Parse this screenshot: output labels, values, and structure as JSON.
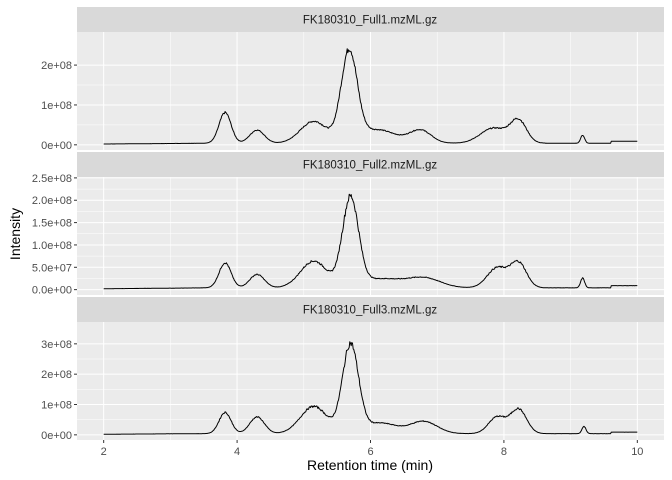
{
  "chart_data": {
    "type": "line",
    "xlabel": "Retention time (min)",
    "ylabel": "Intensity",
    "xlim": [
      1.6,
      10.4
    ],
    "x_ticks": [
      2,
      4,
      6,
      8,
      10
    ],
    "x_tick_labels": [
      "2",
      "4",
      "6",
      "8",
      "10"
    ],
    "grid": true,
    "legend": "none",
    "colors": {
      "panel_background": "#EBEBEB",
      "strip_background": "#D9D9D9",
      "grid_major": "#FFFFFF",
      "line": "#000000",
      "tick_text": "#4D4D4D"
    },
    "facets": [
      {
        "strip": "FK180310_Full1.mzML.gz",
        "ylim": [
          -13000000,
          283000000
        ],
        "y_ticks": [
          0,
          100000000,
          200000000
        ],
        "y_tick_labels": [
          "0e+00",
          "1e+08",
          "2e+08"
        ],
        "peaks": [
          {
            "c": 3.82,
            "h": 77000000,
            "w": 0.09
          },
          {
            "c": 4.3,
            "h": 33000000,
            "w": 0.11
          },
          {
            "c": 5.15,
            "h": 55000000,
            "w": 0.2
          },
          {
            "c": 5.68,
            "h": 225000000,
            "w": 0.12
          },
          {
            "c": 6.1,
            "h": 34000000,
            "w": 0.28
          },
          {
            "c": 6.75,
            "h": 32000000,
            "w": 0.16
          },
          {
            "c": 7.85,
            "h": 38000000,
            "w": 0.2
          },
          {
            "c": 8.22,
            "h": 55000000,
            "w": 0.12
          },
          {
            "c": 9.18,
            "h": 20000000,
            "w": 0.03
          }
        ]
      },
      {
        "strip": "FK180310_Full2.mzML.gz",
        "ylim": [
          -12000000,
          252000000
        ],
        "y_ticks": [
          0,
          50000000,
          100000000,
          150000000,
          200000000,
          250000000
        ],
        "y_tick_labels": [
          "0.0e+00",
          "5.0e+07",
          "1.0e+08",
          "1.5e+08",
          "2.0e+08",
          "2.5e+08"
        ],
        "peaks": [
          {
            "c": 3.82,
            "h": 56000000,
            "w": 0.09
          },
          {
            "c": 4.3,
            "h": 30000000,
            "w": 0.11
          },
          {
            "c": 5.15,
            "h": 60000000,
            "w": 0.2
          },
          {
            "c": 5.7,
            "h": 198000000,
            "w": 0.12
          },
          {
            "c": 6.15,
            "h": 20000000,
            "w": 0.3
          },
          {
            "c": 6.8,
            "h": 22000000,
            "w": 0.25
          },
          {
            "c": 7.9,
            "h": 45000000,
            "w": 0.15
          },
          {
            "c": 8.22,
            "h": 55000000,
            "w": 0.12
          },
          {
            "c": 9.18,
            "h": 22000000,
            "w": 0.03
          }
        ]
      },
      {
        "strip": "FK180310_Full3.mzML.gz",
        "ylim": [
          -17000000,
          372000000
        ],
        "y_ticks": [
          0,
          100000000,
          200000000,
          300000000
        ],
        "y_tick_labels": [
          "0e+00",
          "1e+08",
          "2e+08",
          "3e+08"
        ],
        "peaks": [
          {
            "c": 3.82,
            "h": 70000000,
            "w": 0.09
          },
          {
            "c": 4.3,
            "h": 55000000,
            "w": 0.11
          },
          {
            "c": 5.15,
            "h": 90000000,
            "w": 0.2
          },
          {
            "c": 5.7,
            "h": 290000000,
            "w": 0.12
          },
          {
            "c": 6.15,
            "h": 35000000,
            "w": 0.25
          },
          {
            "c": 6.8,
            "h": 40000000,
            "w": 0.2
          },
          {
            "c": 7.9,
            "h": 55000000,
            "w": 0.13
          },
          {
            "c": 8.22,
            "h": 80000000,
            "w": 0.12
          },
          {
            "c": 9.2,
            "h": 24000000,
            "w": 0.03
          }
        ]
      }
    ]
  }
}
